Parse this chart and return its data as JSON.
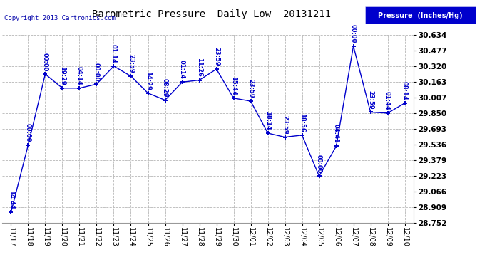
{
  "title": "Barometric Pressure  Daily Low  20131211",
  "copyright": "Copyright 2013 Cartronics.com",
  "legend_label": "Pressure  (Inches/Hg)",
  "x_labels": [
    "11/17",
    "11/18",
    "11/19",
    "11/20",
    "11/21",
    "11/22",
    "11/23",
    "11/24",
    "11/25",
    "11/26",
    "11/27",
    "11/28",
    "11/29",
    "11/30",
    "12/01",
    "12/02",
    "12/03",
    "12/04",
    "12/05",
    "12/06",
    "12/07",
    "12/08",
    "12/09",
    "12/10"
  ],
  "y_values": [
    28.86,
    29.53,
    30.24,
    30.1,
    30.1,
    30.14,
    30.32,
    30.22,
    30.05,
    29.98,
    30.16,
    30.18,
    30.29,
    30.0,
    29.97,
    29.65,
    29.61,
    29.63,
    29.22,
    29.52,
    30.52,
    29.86,
    29.85,
    29.95
  ],
  "time_labels": [
    "14:44",
    "00:00",
    "00:00",
    "19:29",
    "04:14",
    "00:00",
    "01:14",
    "23:59",
    "14:29",
    "08:29",
    "01:14",
    "11:26",
    "23:59",
    "15:44",
    "23:59",
    "18:14",
    "23:59",
    "18:56",
    "00:00",
    "04:41",
    "00:00",
    "23:59",
    "01:44",
    "08:14"
  ],
  "ylim_min": 28.752,
  "ylim_max": 30.634,
  "yticks": [
    28.752,
    28.909,
    29.066,
    29.223,
    29.379,
    29.536,
    29.693,
    29.85,
    30.007,
    30.163,
    30.32,
    30.477,
    30.634
  ],
  "line_color": "#0000CC",
  "marker_color": "#0000CC",
  "bg_color": "#FFFFFF",
  "grid_color": "#AAAAAA",
  "title_color": "#000000",
  "label_color": "#0000CC",
  "legend_bg": "#0000CC",
  "legend_text_color": "#FFFFFF",
  "copyright_color": "#0000AA",
  "title_fontsize": 10,
  "tick_fontsize": 7,
  "label_fontsize": 6,
  "copyright_fontsize": 6.5
}
